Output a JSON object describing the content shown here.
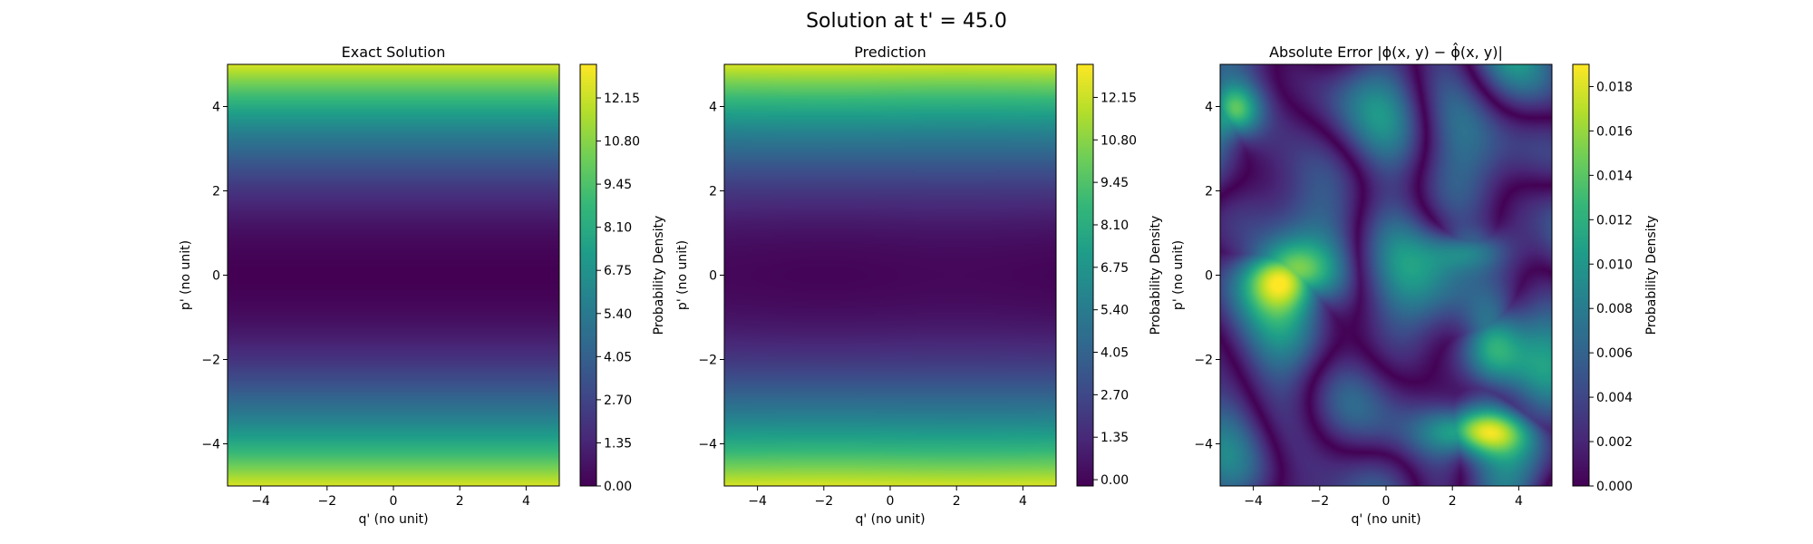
{
  "figure": {
    "title": "Solution at t' = 45.0"
  },
  "colormap": [
    "#440154",
    "#482878",
    "#3e4a89",
    "#31688e",
    "#26828e",
    "#1f9e89",
    "#35b779",
    "#6ece58",
    "#b5de2b",
    "#fde725"
  ],
  "chart_data": [
    {
      "type": "heatmap",
      "title": "Exact Solution",
      "xlabel": "q' (no unit)",
      "ylabel": "p' (no unit)",
      "xlim": [
        -5,
        5
      ],
      "ylim": [
        -5,
        5
      ],
      "xticks": [
        -4,
        -2,
        0,
        2,
        4
      ],
      "yticks": [
        -4,
        -2,
        0,
        2,
        4
      ],
      "xtick_labels": [
        "−4",
        "−2",
        "0",
        "2",
        "4"
      ],
      "ytick_labels": [
        "−4",
        "−2",
        "0",
        "2",
        "4"
      ],
      "colorbar": {
        "label": "Probability Density",
        "range": [
          0,
          13.2
        ],
        "ticks": [
          0,
          1.35,
          2.7,
          4.05,
          5.4,
          6.75,
          8.1,
          9.45,
          10.8,
          12.15
        ],
        "tick_labels": [
          "0.00",
          "1.35",
          "2.70",
          "4.05",
          "5.40",
          "6.75",
          "8.10",
          "9.45",
          "10.80",
          "12.15"
        ]
      },
      "field": "0.5 * p^2 (uniform in q)"
    },
    {
      "type": "heatmap",
      "title": "Prediction",
      "xlabel": "q' (no unit)",
      "ylabel": "p' (no unit)",
      "xlim": [
        -5,
        5
      ],
      "ylim": [
        -5,
        5
      ],
      "xticks": [
        -4,
        -2,
        0,
        2,
        4
      ],
      "yticks": [
        -4,
        -2,
        0,
        2,
        4
      ],
      "xtick_labels": [
        "−4",
        "−2",
        "0",
        "2",
        "4"
      ],
      "ytick_labels": [
        "−4",
        "−2",
        "0",
        "2",
        "4"
      ],
      "colorbar": {
        "label": "Probability Density",
        "range": [
          -0.2,
          13.2
        ],
        "ticks": [
          0,
          1.35,
          2.7,
          4.05,
          5.4,
          6.75,
          8.1,
          9.45,
          10.8,
          12.15
        ],
        "tick_labels": [
          "0.00",
          "1.35",
          "2.70",
          "4.05",
          "5.40",
          "6.75",
          "8.10",
          "9.45",
          "10.80",
          "12.15"
        ]
      },
      "field": "approximately 0.5 * p^2"
    },
    {
      "type": "heatmap",
      "title": "Absolute Error |ϕ(x, y) − ϕ̂(x, y)|",
      "xlabel": "q' (no unit)",
      "ylabel": "p' (no unit)",
      "xlim": [
        -5,
        5
      ],
      "ylim": [
        -5,
        5
      ],
      "xticks": [
        -4,
        -2,
        0,
        2,
        4
      ],
      "yticks": [
        -4,
        -2,
        0,
        2,
        4
      ],
      "xtick_labels": [
        "−4",
        "−2",
        "0",
        "2",
        "4"
      ],
      "ytick_labels": [
        "−4",
        "−2",
        "0",
        "2",
        "4"
      ],
      "colorbar": {
        "label": "Probability Density",
        "range": [
          0,
          0.019
        ],
        "ticks": [
          0,
          0.002,
          0.004,
          0.006,
          0.008,
          0.01,
          0.012,
          0.014,
          0.016,
          0.018
        ],
        "tick_labels": [
          "0.000",
          "0.002",
          "0.004",
          "0.006",
          "0.008",
          "0.010",
          "0.012",
          "0.014",
          "0.016",
          "0.018"
        ]
      },
      "field": "oscillating error, peak ~0.019 near (-3, 0)"
    }
  ]
}
